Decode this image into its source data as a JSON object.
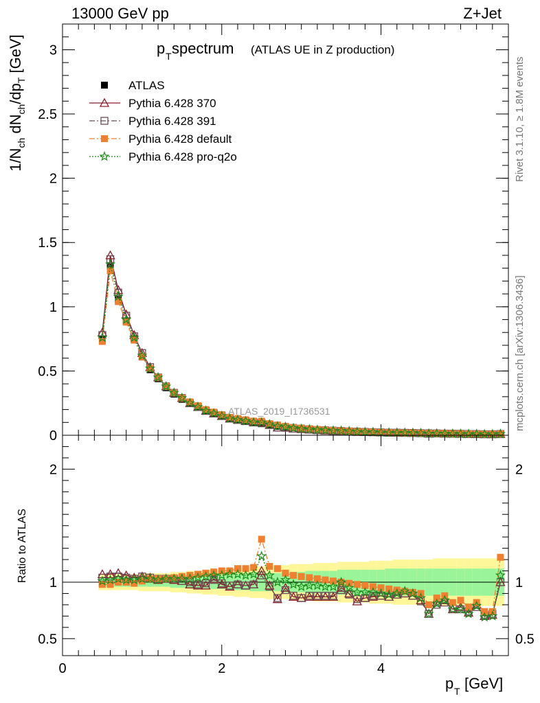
{
  "header": {
    "left": "13000 GeV pp",
    "right": "Z+Jet"
  },
  "title": {
    "main": "p",
    "main_sub": "T",
    "main_rest": " spectrum",
    "paren": "(ATLAS UE in Z production)"
  },
  "side_labels": {
    "rivet": "Rivet 3.1.10, ≥ 1.8M events",
    "mcplots": "mcplots.cern.ch [arXiv:1306.3436]"
  },
  "watermark": "ATLAS_2019_I1736531",
  "legend": [
    {
      "name": "ATLAS",
      "color": "#000000",
      "marker": "filled-square",
      "line": "none"
    },
    {
      "name": "Pythia 6.428 370",
      "color": "#8b1a2b",
      "marker": "open-triangle",
      "line": "solid"
    },
    {
      "name": "Pythia 6.428 391",
      "color": "#6b4a55",
      "marker": "open-square",
      "line": "dashdot"
    },
    {
      "name": "Pythia 6.428 default",
      "color": "#f08030",
      "marker": "filled-square",
      "line": "dashdot"
    },
    {
      "name": "Pythia 6.428 pro-q2o",
      "color": "#1a8a1a",
      "marker": "open-star",
      "line": "dotted"
    }
  ],
  "chart_data": [
    {
      "type": "line",
      "panel": "main",
      "ylabel": "1/N_ch dN_ch/dp_T [GeV]",
      "ylim": [
        0,
        3.2
      ],
      "xlim": [
        0,
        5.6
      ],
      "yticks": [
        "0",
        "0.5",
        "1",
        "1.5",
        "2",
        "2.5",
        "3"
      ],
      "x": [
        0.5,
        0.6,
        0.7,
        0.8,
        0.9,
        1.0,
        1.1,
        1.2,
        1.3,
        1.4,
        1.5,
        1.6,
        1.7,
        1.8,
        1.9,
        2.0,
        2.1,
        2.2,
        2.3,
        2.4,
        2.5,
        2.6,
        2.7,
        2.8,
        2.9,
        3.0,
        3.1,
        3.2,
        3.3,
        3.4,
        3.5,
        3.6,
        3.7,
        3.8,
        3.9,
        4.0,
        4.1,
        4.2,
        4.3,
        4.4,
        4.5,
        4.6,
        4.7,
        4.8,
        4.9,
        5.0,
        5.1,
        5.2,
        5.3,
        5.4,
        5.5
      ],
      "series": [
        {
          "name": "ATLAS",
          "values": [
            0.75,
            1.31,
            1.06,
            0.89,
            0.75,
            0.61,
            0.51,
            0.44,
            0.37,
            0.32,
            0.28,
            0.25,
            0.22,
            0.19,
            0.17,
            0.15,
            0.13,
            0.12,
            0.11,
            0.1,
            0.09,
            0.08,
            0.07,
            0.065,
            0.06,
            0.055,
            0.05,
            0.045,
            0.042,
            0.039,
            0.036,
            0.033,
            0.031,
            0.029,
            0.027,
            0.025,
            0.023,
            0.022,
            0.021,
            0.02,
            0.019,
            0.018,
            0.017,
            0.016,
            0.015,
            0.014,
            0.013,
            0.012,
            0.011,
            0.011,
            0.01
          ]
        },
        {
          "name": "Pythia 6.428 370",
          "values": [
            0.8,
            1.4,
            1.13,
            0.94,
            0.78,
            0.64,
            0.53,
            0.45,
            0.38,
            0.33,
            0.29,
            0.25,
            0.22,
            0.19,
            0.17,
            0.15,
            0.13,
            0.12,
            0.11,
            0.1,
            0.1,
            0.08,
            0.06,
            0.06,
            0.052,
            0.048,
            0.044,
            0.04,
            0.037,
            0.034,
            0.034,
            0.03,
            0.026,
            0.025,
            0.024,
            0.022,
            0.02,
            0.02,
            0.019,
            0.018,
            0.017,
            0.013,
            0.014,
            0.013,
            0.012,
            0.011,
            0.01,
            0.009,
            0.008,
            0.008,
            0.01
          ]
        },
        {
          "name": "Pythia 6.428 391",
          "values": [
            0.78,
            1.37,
            1.11,
            0.93,
            0.77,
            0.64,
            0.53,
            0.45,
            0.38,
            0.33,
            0.29,
            0.25,
            0.22,
            0.19,
            0.17,
            0.15,
            0.13,
            0.12,
            0.11,
            0.1,
            0.095,
            0.08,
            0.06,
            0.058,
            0.052,
            0.048,
            0.044,
            0.04,
            0.037,
            0.034,
            0.033,
            0.029,
            0.027,
            0.025,
            0.024,
            0.022,
            0.02,
            0.02,
            0.019,
            0.018,
            0.016,
            0.013,
            0.014,
            0.013,
            0.012,
            0.011,
            0.01,
            0.009,
            0.008,
            0.008,
            0.01
          ]
        },
        {
          "name": "Pythia 6.428 default",
          "values": [
            0.73,
            1.28,
            1.04,
            0.88,
            0.74,
            0.61,
            0.52,
            0.45,
            0.38,
            0.33,
            0.29,
            0.26,
            0.23,
            0.2,
            0.18,
            0.16,
            0.14,
            0.13,
            0.12,
            0.11,
            0.11,
            0.09,
            0.08,
            0.07,
            0.06,
            0.055,
            0.05,
            0.045,
            0.041,
            0.038,
            0.035,
            0.032,
            0.029,
            0.027,
            0.025,
            0.023,
            0.021,
            0.02,
            0.019,
            0.018,
            0.017,
            0.015,
            0.015,
            0.014,
            0.013,
            0.012,
            0.011,
            0.01,
            0.009,
            0.009,
            0.011
          ]
        },
        {
          "name": "Pythia 6.428 pro-q2o",
          "values": [
            0.76,
            1.33,
            1.08,
            0.9,
            0.76,
            0.62,
            0.52,
            0.45,
            0.38,
            0.33,
            0.29,
            0.25,
            0.22,
            0.19,
            0.17,
            0.15,
            0.13,
            0.12,
            0.11,
            0.1,
            0.1,
            0.085,
            0.07,
            0.065,
            0.056,
            0.05,
            0.046,
            0.042,
            0.039,
            0.036,
            0.035,
            0.031,
            0.027,
            0.025,
            0.024,
            0.022,
            0.02,
            0.02,
            0.019,
            0.018,
            0.016,
            0.013,
            0.014,
            0.013,
            0.012,
            0.011,
            0.01,
            0.009,
            0.008,
            0.008,
            0.01
          ]
        }
      ]
    },
    {
      "type": "line",
      "panel": "ratio",
      "ylabel": "Ratio to ATLAS",
      "xlabel": "p_T [GeV]",
      "ylim": [
        0.35,
        2.3
      ],
      "xlim": [
        0,
        5.6
      ],
      "yticks": [
        "0.5",
        "1",
        "2"
      ],
      "xticks": [
        "0",
        "2",
        "4"
      ],
      "x": [
        0.5,
        0.6,
        0.7,
        0.8,
        0.9,
        1.0,
        1.1,
        1.2,
        1.3,
        1.4,
        1.5,
        1.6,
        1.7,
        1.8,
        1.9,
        2.0,
        2.1,
        2.2,
        2.3,
        2.4,
        2.5,
        2.6,
        2.7,
        2.8,
        2.9,
        3.0,
        3.1,
        3.2,
        3.3,
        3.4,
        3.5,
        3.6,
        3.7,
        3.8,
        3.9,
        4.0,
        4.1,
        4.2,
        4.3,
        4.4,
        4.5,
        4.6,
        4.7,
        4.8,
        4.9,
        5.0,
        5.1,
        5.2,
        5.3,
        5.4,
        5.5
      ],
      "band_inner": [
        0.04,
        0.04,
        0.04,
        0.04,
        0.04,
        0.04,
        0.04,
        0.04,
        0.04,
        0.05,
        0.05,
        0.05,
        0.06,
        0.06,
        0.06,
        0.06,
        0.07,
        0.07,
        0.07,
        0.08,
        0.08,
        0.08,
        0.08,
        0.09,
        0.09,
        0.09,
        0.1,
        0.1,
        0.1,
        0.1,
        0.11,
        0.11,
        0.11,
        0.11,
        0.11,
        0.11,
        0.12,
        0.12,
        0.12,
        0.12,
        0.12,
        0.12,
        0.12,
        0.12,
        0.12,
        0.12,
        0.12,
        0.12,
        0.12,
        0.12,
        0.12
      ],
      "band_outer": [
        0.07,
        0.07,
        0.07,
        0.07,
        0.07,
        0.08,
        0.08,
        0.08,
        0.08,
        0.09,
        0.09,
        0.1,
        0.1,
        0.11,
        0.11,
        0.12,
        0.12,
        0.13,
        0.13,
        0.14,
        0.14,
        0.15,
        0.15,
        0.15,
        0.16,
        0.16,
        0.16,
        0.17,
        0.17,
        0.17,
        0.18,
        0.18,
        0.18,
        0.18,
        0.19,
        0.19,
        0.19,
        0.2,
        0.2,
        0.2,
        0.2,
        0.2,
        0.21,
        0.21,
        0.21,
        0.21,
        0.21,
        0.21,
        0.21,
        0.21,
        0.21
      ],
      "series": [
        {
          "name": "Pythia 6.428 370",
          "values": [
            1.07,
            1.07,
            1.08,
            1.06,
            1.04,
            1.05,
            1.04,
            1.02,
            1.03,
            1.02,
            1.01,
            0.98,
            0.97,
            0.97,
            1.03,
            0.98,
            0.96,
            0.98,
            0.97,
            0.98,
            1.1,
            0.97,
            0.85,
            0.95,
            0.87,
            0.86,
            0.87,
            0.87,
            0.87,
            0.87,
            0.95,
            0.9,
            0.83,
            0.86,
            0.87,
            0.88,
            0.87,
            0.89,
            0.9,
            0.88,
            0.84,
            0.72,
            0.82,
            0.84,
            0.76,
            0.78,
            0.73,
            0.8,
            0.7,
            0.71,
            1.0
          ]
        },
        {
          "name": "Pythia 6.428 391",
          "values": [
            1.04,
            1.05,
            1.05,
            1.04,
            1.03,
            1.05,
            1.04,
            1.03,
            1.03,
            1.03,
            1.01,
            1.0,
            0.98,
            0.99,
            1.02,
            0.99,
            0.97,
            0.98,
            0.97,
            0.98,
            1.06,
            0.96,
            0.86,
            0.93,
            0.88,
            0.86,
            0.88,
            0.88,
            0.88,
            0.88,
            0.93,
            0.89,
            0.85,
            0.86,
            0.88,
            0.88,
            0.87,
            0.89,
            0.9,
            0.88,
            0.83,
            0.72,
            0.8,
            0.82,
            0.77,
            0.76,
            0.74,
            0.78,
            0.71,
            0.72,
            1.0
          ]
        },
        {
          "name": "Pythia 6.428 default",
          "values": [
            0.98,
            0.98,
            1.0,
            1.0,
            0.99,
            1.01,
            1.03,
            1.03,
            1.03,
            1.04,
            1.05,
            1.06,
            1.07,
            1.08,
            1.09,
            1.1,
            1.1,
            1.12,
            1.12,
            1.13,
            1.38,
            1.14,
            1.12,
            1.08,
            1.06,
            1.05,
            1.04,
            1.03,
            1.02,
            1.01,
            1.0,
            0.99,
            0.98,
            0.97,
            0.96,
            0.95,
            0.94,
            0.93,
            0.92,
            0.91,
            0.9,
            0.8,
            0.86,
            0.88,
            0.82,
            0.84,
            0.78,
            0.82,
            0.74,
            0.74,
            1.22
          ]
        },
        {
          "name": "Pythia 6.428 pro-q2o",
          "values": [
            1.01,
            1.02,
            1.03,
            1.02,
            1.02,
            1.03,
            1.03,
            1.02,
            1.03,
            1.03,
            1.03,
            1.03,
            1.04,
            1.05,
            1.06,
            1.06,
            1.07,
            1.07,
            1.06,
            1.07,
            1.23,
            1.06,
            1.0,
            1.02,
            0.98,
            0.96,
            0.97,
            0.97,
            0.96,
            0.96,
            1.0,
            0.95,
            0.91,
            0.91,
            0.91,
            0.9,
            0.89,
            0.9,
            0.92,
            0.9,
            0.86,
            0.72,
            0.81,
            0.84,
            0.76,
            0.76,
            0.72,
            0.79,
            0.69,
            0.7,
            1.06
          ]
        }
      ]
    }
  ]
}
